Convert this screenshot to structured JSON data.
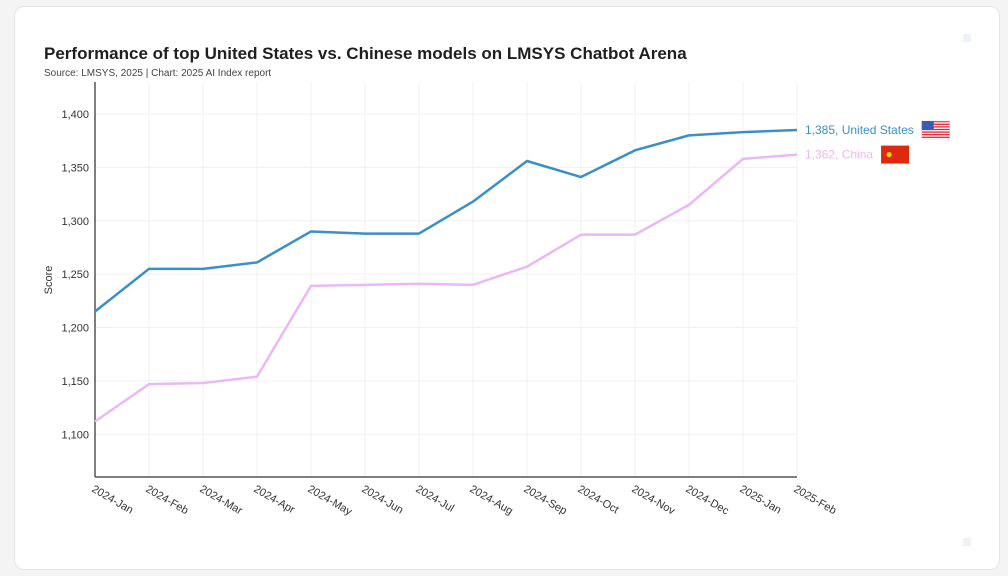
{
  "chart_data": {
    "type": "line",
    "title": "Performance of top United States vs. Chinese models on LMSYS Chatbot Arena",
    "subtitle": "Source: LMSYS, 2025 | Chart: 2025 AI Index report",
    "xlabel": "",
    "ylabel": "Score",
    "ylim": [
      1060,
      1430
    ],
    "yticks": [
      1100,
      1150,
      1200,
      1250,
      1300,
      1350,
      1400
    ],
    "ytick_labels": [
      "1,100",
      "1,150",
      "1,200",
      "1,250",
      "1,300",
      "1,350",
      "1,400"
    ],
    "grid": true,
    "categories": [
      "2024-Jan",
      "2024-Feb",
      "2024-Mar",
      "2024-Apr",
      "2024-May",
      "2024-Jun",
      "2024-Jul",
      "2024-Aug",
      "2024-Sep",
      "2024-Oct",
      "2024-Nov",
      "2024-Dec",
      "2025-Jan",
      "2025-Feb"
    ],
    "series": [
      {
        "name": "United States",
        "color": "#3a8fc7",
        "end_label": "1,385, United States",
        "flag": "us-flag",
        "values": [
          1215,
          1255,
          1255,
          1261,
          1290,
          1288,
          1288,
          1318,
          1356,
          1341,
          1366,
          1380,
          1383,
          1385
        ]
      },
      {
        "name": "China",
        "color": "#eab8f5",
        "end_label": "1,362, China",
        "flag": "china-flag",
        "values": [
          1112,
          1147,
          1148,
          1154,
          1239,
          1240,
          1241,
          1240,
          1257,
          1287,
          1287,
          1315,
          1358,
          1362
        ]
      }
    ]
  }
}
